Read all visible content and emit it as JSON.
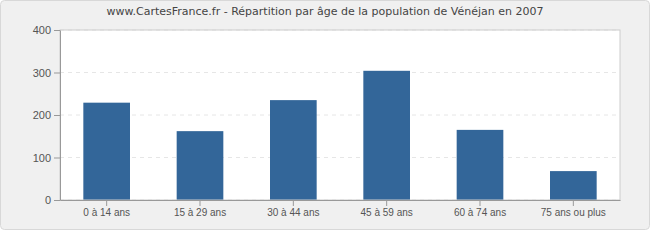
{
  "chart_data": {
    "type": "bar",
    "title": "www.CartesFrance.fr - Répartition par âge de la population de Vénéjan en 2007",
    "categories": [
      "0 à 14 ans",
      "15 à 29 ans",
      "30 à 44 ans",
      "45 à 59 ans",
      "60 à 74 ans",
      "75 ans ou plus"
    ],
    "values": [
      229,
      162,
      235,
      304,
      165,
      68
    ],
    "color": "#336699",
    "ylim": [
      0,
      400
    ],
    "yticks": [
      0,
      100,
      200,
      300,
      400
    ],
    "grid": true
  }
}
